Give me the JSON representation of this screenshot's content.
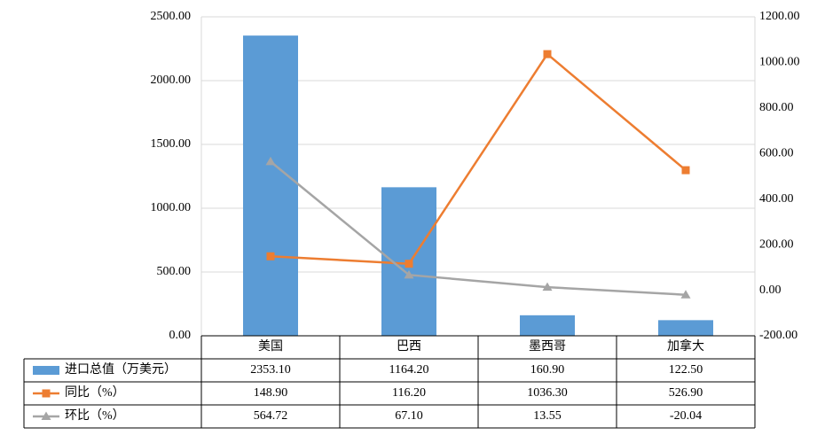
{
  "chart_data": {
    "type": "bar",
    "categories": [
      "美国",
      "巴西",
      "墨西哥",
      "加拿大"
    ],
    "series": [
      {
        "name": "进口总值（万美元）",
        "type": "bar",
        "axis": "left",
        "values": [
          2353.1,
          1164.2,
          160.9,
          122.5
        ],
        "labels": [
          "2353.10",
          "1164.20",
          "160.90",
          "122.50"
        ]
      },
      {
        "name": "同比（%）",
        "type": "line",
        "axis": "right",
        "marker": "square",
        "values": [
          148.9,
          116.2,
          1036.3,
          526.9
        ],
        "labels": [
          "148.90",
          "116.20",
          "1036.30",
          "526.90"
        ]
      },
      {
        "name": "环比（%）",
        "type": "line",
        "axis": "right",
        "marker": "triangle",
        "values": [
          564.72,
          67.1,
          13.55,
          -20.04
        ],
        "labels": [
          "564.72",
          "67.10",
          "13.55",
          "-20.04"
        ]
      }
    ],
    "y_left": {
      "ylim": [
        0,
        2500
      ],
      "ticks": [
        0,
        500,
        1000,
        1500,
        2000,
        2500
      ],
      "tick_labels": [
        "0.00",
        "500.00",
        "1000.00",
        "1500.00",
        "2000.00",
        "2500.00"
      ]
    },
    "y_right": {
      "ylim": [
        -200,
        1200
      ],
      "ticks": [
        -200,
        0,
        200,
        400,
        600,
        800,
        1000,
        1200
      ],
      "tick_labels": [
        "-200.00",
        "0.00",
        "200.00",
        "400.00",
        "600.00",
        "800.00",
        "1000.00",
        "1200.00"
      ]
    },
    "grid": true,
    "legend": "data-table",
    "colors": {
      "bar": "#5b9bd5",
      "yoy": "#ed7d31",
      "mom": "#a5a5a5",
      "grid": "#d9d9d9",
      "table": "#000000"
    }
  }
}
